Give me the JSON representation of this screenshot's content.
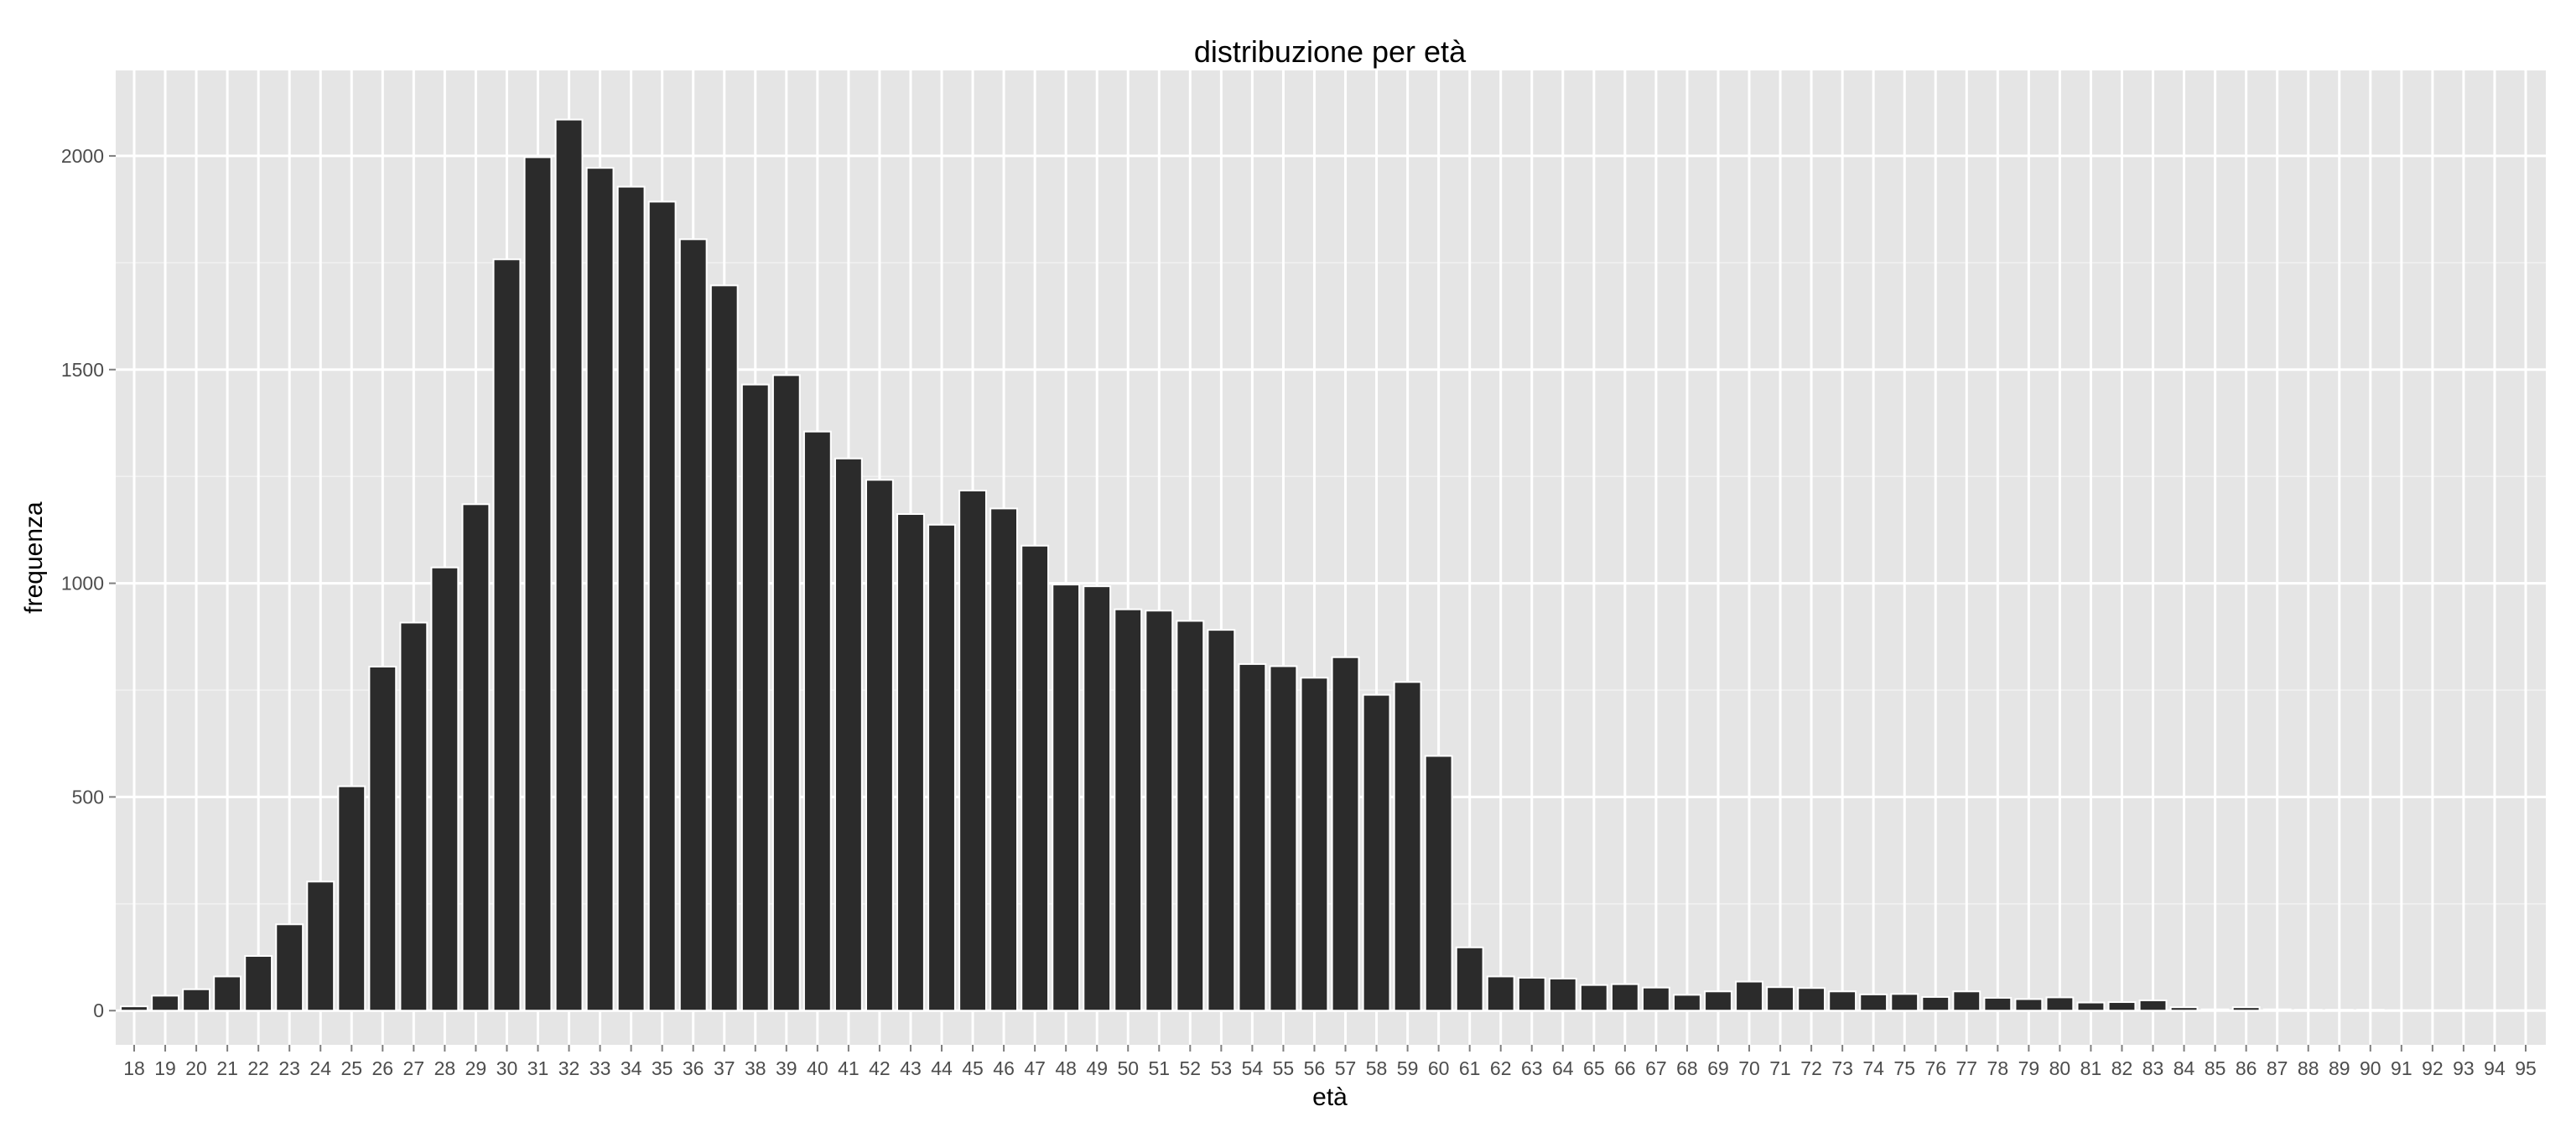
{
  "chart_data": {
    "type": "bar",
    "title": "distribuzione per età",
    "xlabel": "età",
    "ylabel": "frequenza",
    "ylim": [
      -80,
      2200
    ],
    "yticks": [
      0,
      500,
      1000,
      1500,
      2000
    ],
    "yticks_labels": [
      "0",
      "500",
      "1000",
      "1500",
      "2000"
    ],
    "grid": true,
    "legend": "none",
    "colors": {
      "panel": "#e5e5e5",
      "grid_major": "#ffffff",
      "grid_minor": "#f2f2f2",
      "bar_fill": "#2b2b2b",
      "bar_outline": "#ffffff",
      "tick_text": "#4d4d4d",
      "tick_mark": "#7f7f7f"
    },
    "categories": [
      "18",
      "19",
      "20",
      "21",
      "22",
      "23",
      "24",
      "25",
      "26",
      "27",
      "28",
      "29",
      "30",
      "31",
      "32",
      "33",
      "34",
      "35",
      "36",
      "37",
      "38",
      "39",
      "40",
      "41",
      "42",
      "43",
      "44",
      "45",
      "46",
      "47",
      "48",
      "49",
      "50",
      "51",
      "52",
      "53",
      "54",
      "55",
      "56",
      "57",
      "58",
      "59",
      "60",
      "61",
      "62",
      "63",
      "64",
      "65",
      "66",
      "67",
      "68",
      "69",
      "70",
      "71",
      "72",
      "73",
      "74",
      "75",
      "76",
      "77",
      "78",
      "79",
      "80",
      "81",
      "82",
      "83",
      "84",
      "85",
      "86",
      "87",
      "88",
      "89",
      "90",
      "91",
      "92",
      "93",
      "94",
      "95"
    ],
    "values": [
      10,
      35,
      50,
      80,
      128,
      202,
      302,
      525,
      805,
      908,
      1037,
      1185,
      1758,
      1997,
      2085,
      1972,
      1928,
      1893,
      1805,
      1697,
      1465,
      1487,
      1355,
      1292,
      1242,
      1162,
      1137,
      1217,
      1175,
      1088,
      997,
      993,
      939,
      936,
      912,
      891,
      811,
      806,
      779,
      827,
      739,
      769,
      596,
      148,
      80,
      77,
      75,
      60,
      62,
      54,
      37,
      45,
      68,
      55,
      53,
      45,
      38,
      39,
      32,
      45,
      30,
      27,
      31,
      19,
      20,
      24,
      8,
      3,
      8,
      3,
      2,
      2,
      2,
      1,
      1,
      1,
      1,
      1
    ]
  }
}
